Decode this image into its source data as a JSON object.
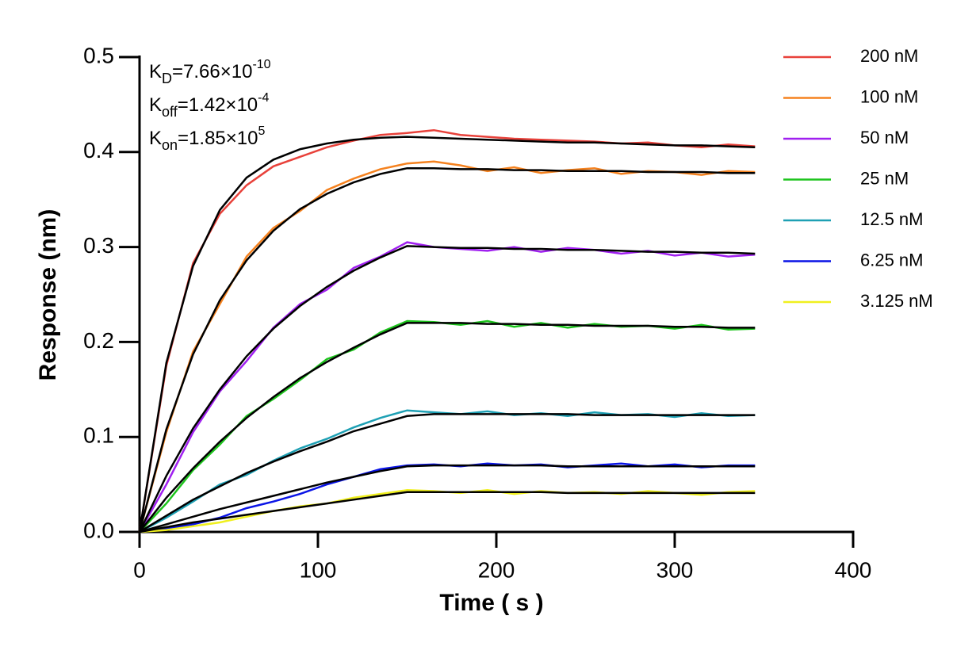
{
  "chart_data": {
    "type": "line",
    "xlabel": "Time ( s )",
    "ylabel": "Response (nm)",
    "annotations": [
      {
        "main": "K",
        "sub": "D",
        "text": "=7.66×10",
        "sup": "-10"
      },
      {
        "main": "K",
        "sub": "off",
        "text": "=1.42×10",
        "sup": "-4"
      },
      {
        "main": "K",
        "sub": "on",
        "text": "=1.85×10",
        "sup": "5"
      }
    ],
    "x": [
      0,
      15,
      30,
      45,
      60,
      75,
      90,
      105,
      120,
      135,
      150,
      165,
      180,
      195,
      210,
      225,
      240,
      255,
      270,
      285,
      300,
      315,
      330,
      345
    ],
    "xlim": [
      0,
      400
    ],
    "xticks": [
      0,
      100,
      200,
      300,
      400
    ],
    "ylim": [
      0,
      0.5
    ],
    "yticks": [
      {
        "value": 0,
        "label": "0.0"
      },
      0.1,
      0.2,
      0.3,
      0.4,
      0.5
    ],
    "series": [
      {
        "name": "200 nM",
        "color": "#e8413a",
        "values": [
          0,
          0.175,
          0.283,
          0.335,
          0.365,
          0.385,
          0.395,
          0.405,
          0.412,
          0.418,
          0.42,
          0.423,
          0.418,
          0.416,
          0.414,
          0.413,
          0.412,
          0.411,
          0.409,
          0.41,
          0.407,
          0.405,
          0.408,
          0.406
        ]
      },
      {
        "name": "100 nM",
        "color": "#f5821f",
        "values": [
          0,
          0.105,
          0.19,
          0.24,
          0.29,
          0.32,
          0.338,
          0.36,
          0.372,
          0.382,
          0.388,
          0.39,
          0.386,
          0.38,
          0.384,
          0.378,
          0.381,
          0.383,
          0.377,
          0.38,
          0.379,
          0.376,
          0.38,
          0.379
        ]
      },
      {
        "name": "50 nM",
        "color": "#a020f0",
        "values": [
          0,
          0.05,
          0.105,
          0.148,
          0.18,
          0.215,
          0.24,
          0.255,
          0.278,
          0.29,
          0.305,
          0.3,
          0.298,
          0.296,
          0.3,
          0.295,
          0.299,
          0.297,
          0.293,
          0.296,
          0.291,
          0.294,
          0.29,
          0.292
        ]
      },
      {
        "name": "25 nM",
        "color": "#1dc41d",
        "values": [
          0,
          0.03,
          0.065,
          0.092,
          0.122,
          0.14,
          0.16,
          0.182,
          0.192,
          0.21,
          0.222,
          0.221,
          0.218,
          0.222,
          0.216,
          0.22,
          0.215,
          0.219,
          0.216,
          0.217,
          0.214,
          0.218,
          0.213,
          0.214
        ]
      },
      {
        "name": "12.5 nM",
        "color": "#1ea0b4",
        "values": [
          0,
          0.015,
          0.032,
          0.05,
          0.06,
          0.075,
          0.088,
          0.098,
          0.11,
          0.12,
          0.128,
          0.126,
          0.124,
          0.127,
          0.123,
          0.125,
          0.122,
          0.126,
          0.123,
          0.124,
          0.121,
          0.125,
          0.122,
          0.123
        ]
      },
      {
        "name": "6.25 nM",
        "color": "#0a14e6",
        "values": [
          0,
          0.003,
          0.008,
          0.015,
          0.025,
          0.032,
          0.04,
          0.05,
          0.058,
          0.066,
          0.07,
          0.071,
          0.069,
          0.072,
          0.07,
          0.071,
          0.068,
          0.07,
          0.072,
          0.069,
          0.071,
          0.068,
          0.07,
          0.07
        ]
      },
      {
        "name": "3.125 nM",
        "color": "#f0f01e",
        "values": [
          0,
          0.002,
          0.006,
          0.01,
          0.016,
          0.022,
          0.027,
          0.03,
          0.036,
          0.04,
          0.044,
          0.043,
          0.041,
          0.044,
          0.04,
          0.043,
          0.041,
          0.042,
          0.04,
          0.043,
          0.041,
          0.039,
          0.042,
          0.043
        ]
      }
    ],
    "fits": [
      {
        "color": "#000000",
        "values": [
          0,
          0.178,
          0.28,
          0.339,
          0.373,
          0.392,
          0.403,
          0.409,
          0.413,
          0.415,
          0.416,
          0.415,
          0.414,
          0.413,
          0.412,
          0.411,
          0.41,
          0.41,
          0.409,
          0.408,
          0.407,
          0.407,
          0.406,
          0.405
        ]
      },
      {
        "color": "#000000",
        "values": [
          0,
          0.108,
          0.187,
          0.244,
          0.286,
          0.317,
          0.34,
          0.356,
          0.368,
          0.377,
          0.383,
          0.383,
          0.382,
          0.382,
          0.381,
          0.381,
          0.38,
          0.38,
          0.38,
          0.379,
          0.379,
          0.379,
          0.378,
          0.378
        ]
      },
      {
        "color": "#000000",
        "values": [
          0,
          0.059,
          0.109,
          0.15,
          0.185,
          0.214,
          0.238,
          0.258,
          0.275,
          0.289,
          0.301,
          0.3,
          0.299,
          0.299,
          0.298,
          0.298,
          0.297,
          0.297,
          0.296,
          0.295,
          0.295,
          0.294,
          0.294,
          0.293
        ]
      },
      {
        "color": "#000000",
        "values": [
          0,
          0.036,
          0.067,
          0.095,
          0.12,
          0.142,
          0.162,
          0.179,
          0.194,
          0.208,
          0.22,
          0.22,
          0.22,
          0.219,
          0.219,
          0.218,
          0.218,
          0.217,
          0.217,
          0.217,
          0.216,
          0.216,
          0.215,
          0.215
        ]
      },
      {
        "color": "#000000",
        "values": [
          0,
          0.017,
          0.034,
          0.048,
          0.062,
          0.074,
          0.085,
          0.095,
          0.106,
          0.114,
          0.122,
          0.124,
          0.124,
          0.124,
          0.124,
          0.124,
          0.124,
          0.123,
          0.123,
          0.123,
          0.123,
          0.123,
          0.123,
          0.123
        ]
      },
      {
        "color": "#000000",
        "values": [
          0,
          0.008,
          0.016,
          0.024,
          0.031,
          0.038,
          0.045,
          0.052,
          0.058,
          0.064,
          0.069,
          0.07,
          0.07,
          0.07,
          0.07,
          0.07,
          0.069,
          0.069,
          0.069,
          0.069,
          0.069,
          0.069,
          0.069,
          0.069
        ]
      },
      {
        "color": "#000000",
        "values": [
          0,
          0.005,
          0.01,
          0.014,
          0.018,
          0.022,
          0.026,
          0.03,
          0.034,
          0.038,
          0.042,
          0.042,
          0.042,
          0.042,
          0.042,
          0.042,
          0.041,
          0.041,
          0.041,
          0.041,
          0.041,
          0.041,
          0.041,
          0.041
        ]
      }
    ]
  }
}
